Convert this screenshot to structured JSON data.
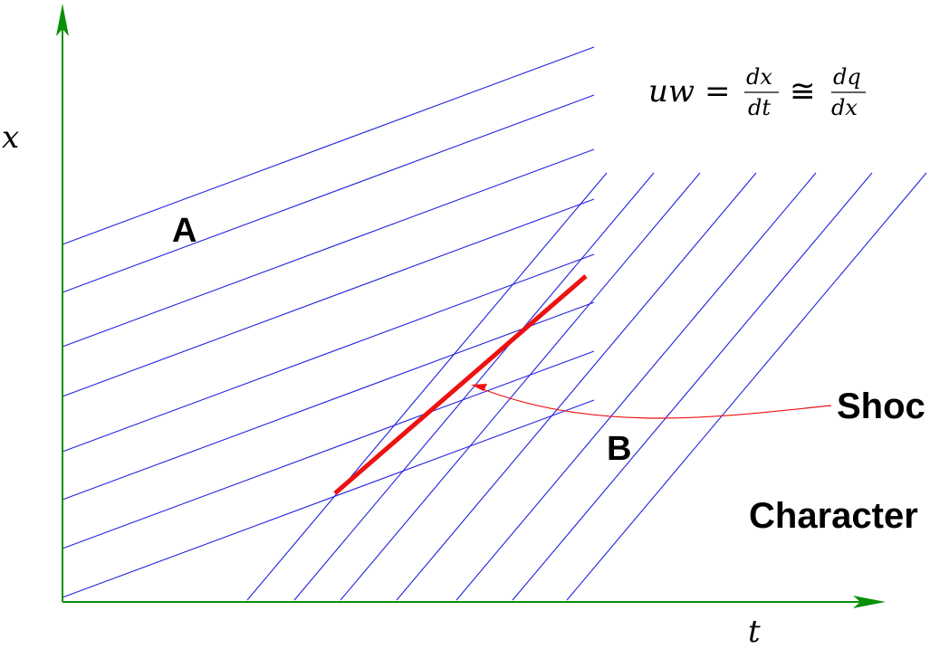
{
  "axes": {
    "x_label": "x",
    "t_label": "t",
    "color": "#0a8f0a"
  },
  "equation": {
    "lhs": "uw",
    "equals": "=",
    "frac1_num": "dx",
    "frac1_den": "dt",
    "approx": "≅",
    "frac2_num": "dq",
    "frac2_den": "dx"
  },
  "regions": {
    "a_label": "A",
    "b_label": "B"
  },
  "callouts": {
    "shock_label": "Shoc",
    "characteristics_label": "Character"
  },
  "colors": {
    "characteristic_lines": "#2020e0",
    "shock": "#ee1111",
    "axes": "#0a8f0a"
  }
}
